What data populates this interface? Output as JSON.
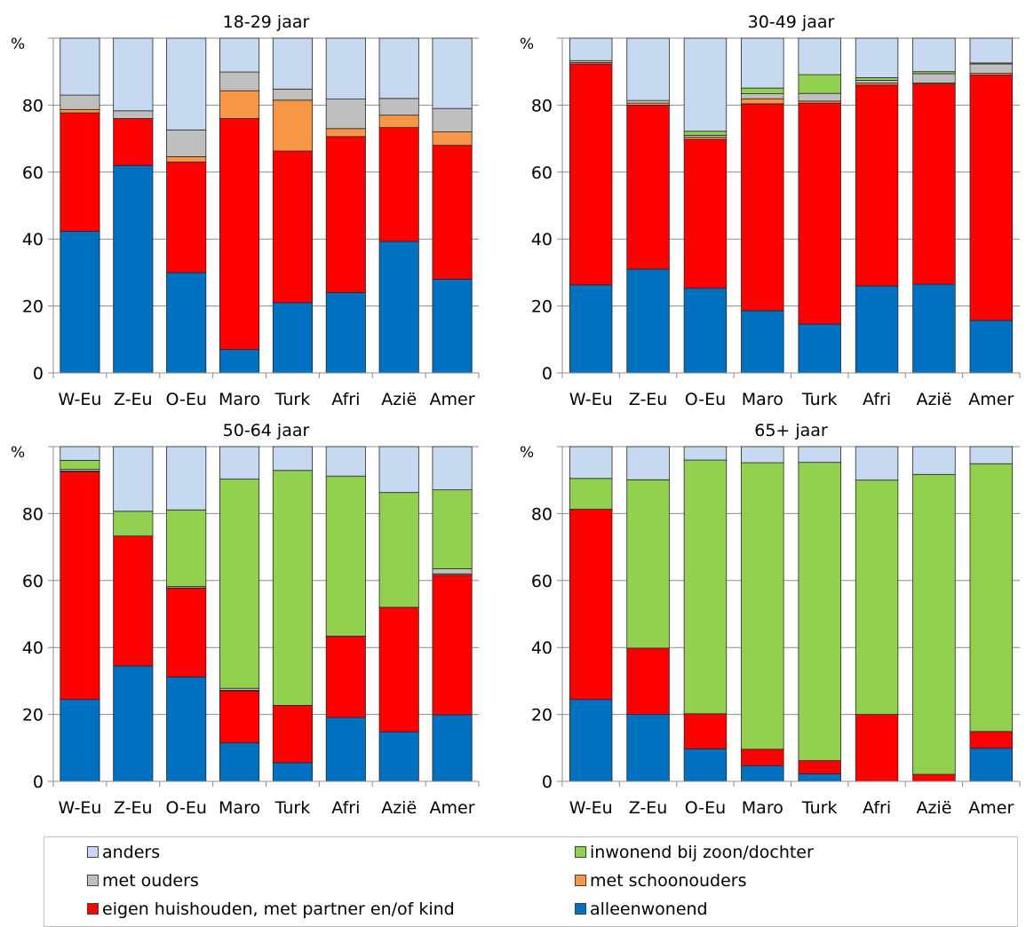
{
  "chart_data": [
    {
      "type": "bar",
      "stacked": true,
      "title": "18-29 jaar",
      "ylabel": "%",
      "ylim": [
        0,
        100
      ],
      "yticks": [
        "0",
        "20",
        "40",
        "60",
        "80"
      ],
      "categories": [
        "W-Eu",
        "Z-Eu",
        "O-Eu",
        "Maro",
        "Turk",
        "Afri",
        "Azië",
        "Amer"
      ],
      "series": [
        {
          "name": "alleenwonend",
          "color": "#0070c0",
          "values": [
            42.3,
            62,
            30,
            7,
            21,
            24,
            39.3,
            28
          ]
        },
        {
          "name": "eigen huishouden, met partner en/of kind",
          "color": "#ff0000",
          "values": [
            35.4,
            14,
            33,
            69,
            45.3,
            46.6,
            34,
            40
          ]
        },
        {
          "name": "met schoonouders",
          "color": "#f79646",
          "values": [
            1,
            0,
            1.6,
            8.3,
            15.2,
            2.4,
            3.7,
            4
          ]
        },
        {
          "name": "met ouders",
          "color": "#bfbfbf",
          "values": [
            4.3,
            2.3,
            8,
            5.6,
            3.3,
            8.8,
            5,
            7
          ]
        },
        {
          "name": "inwonend bij zoon/dochter",
          "color": "#92d050",
          "values": [
            0,
            0,
            0,
            0,
            0,
            0,
            0,
            0
          ]
        },
        {
          "name": "anders",
          "color": "#c6d9f1",
          "values": [
            17,
            21.7,
            27.4,
            10.1,
            15.2,
            18.2,
            18,
            21
          ]
        }
      ]
    },
    {
      "type": "bar",
      "stacked": true,
      "title": "30-49 jaar",
      "ylabel": "%",
      "ylim": [
        0,
        100
      ],
      "yticks": [
        "0",
        "20",
        "40",
        "60",
        "80"
      ],
      "categories": [
        "W-Eu",
        "Z-Eu",
        "O-Eu",
        "Maro",
        "Turk",
        "Afri",
        "Azië",
        "Amer"
      ],
      "series": [
        {
          "name": "alleenwonend",
          "color": "#0070c0",
          "values": [
            26.3,
            31,
            25.3,
            18.6,
            14.6,
            26,
            26.5,
            15.7
          ]
        },
        {
          "name": "eigen huishouden, met partner en/of kind",
          "color": "#ff0000",
          "values": [
            66,
            49,
            44.5,
            61.8,
            66,
            60,
            59.8,
            73.3
          ]
        },
        {
          "name": "met schoonouders",
          "color": "#f79646",
          "values": [
            0.4,
            0.6,
            0.6,
            1.5,
            0.6,
            0.6,
            0.3,
            0.5
          ]
        },
        {
          "name": "met ouders",
          "color": "#bfbfbf",
          "values": [
            0.6,
            0.8,
            0.6,
            1.5,
            2.3,
            0.8,
            2.8,
            2.8
          ]
        },
        {
          "name": "inwonend bij zoon/dochter",
          "color": "#92d050",
          "values": [
            0,
            0,
            1.2,
            1.7,
            5.6,
            0.8,
            0.6,
            0.3
          ]
        },
        {
          "name": "anders",
          "color": "#c6d9f1",
          "values": [
            6.7,
            18.6,
            27.8,
            14.9,
            10.9,
            11.8,
            10,
            7.4
          ]
        }
      ]
    },
    {
      "type": "bar",
      "stacked": true,
      "title": "50-64 jaar",
      "ylabel": "%",
      "ylim": [
        0,
        100
      ],
      "yticks": [
        "0",
        "20",
        "40",
        "60",
        "80"
      ],
      "categories": [
        "W-Eu",
        "Z-Eu",
        "O-Eu",
        "Maro",
        "Turk",
        "Afri",
        "Azië",
        "Amer"
      ],
      "series": [
        {
          "name": "alleenwonend",
          "color": "#0070c0",
          "values": [
            24.5,
            34.5,
            31.2,
            11.5,
            5.6,
            19.1,
            14.8,
            19.9
          ]
        },
        {
          "name": "eigen huishouden, met partner en/of kind",
          "color": "#ff0000",
          "values": [
            68,
            38.8,
            26.5,
            15.5,
            17.1,
            24.3,
            37.2,
            41.7
          ]
        },
        {
          "name": "met schoonouders",
          "color": "#f79646",
          "values": [
            0.2,
            0,
            0.1,
            0.2,
            0,
            0,
            0,
            0.4
          ]
        },
        {
          "name": "met ouders",
          "color": "#bfbfbf",
          "values": [
            0.5,
            0,
            0.4,
            0.6,
            0,
            0,
            0,
            1.5
          ]
        },
        {
          "name": "inwonend bij zoon/dochter",
          "color": "#92d050",
          "values": [
            2.7,
            7.4,
            22.9,
            62.5,
            70.2,
            47.8,
            34.3,
            23.6
          ]
        },
        {
          "name": "anders",
          "color": "#c6d9f1",
          "values": [
            4.1,
            19.3,
            18.9,
            9.7,
            7.1,
            8.8,
            13.7,
            12.9
          ]
        }
      ]
    },
    {
      "type": "bar",
      "stacked": true,
      "title": "65+ jaar",
      "ylabel": "%",
      "ylim": [
        0,
        100
      ],
      "yticks": [
        "0",
        "20",
        "40",
        "60",
        "80"
      ],
      "categories": [
        "W-Eu",
        "Z-Eu",
        "O-Eu",
        "Maro",
        "Turk",
        "Afri",
        "Azië",
        "Amer"
      ],
      "series": [
        {
          "name": "alleenwonend",
          "color": "#0070c0",
          "values": [
            24.5,
            20,
            9.7,
            4.7,
            2.3,
            0,
            0,
            9.9
          ]
        },
        {
          "name": "eigen huishouden, met partner en/of kind",
          "color": "#ff0000",
          "values": [
            56.8,
            19.8,
            10.5,
            4.9,
            3.9,
            20,
            2.1,
            5
          ]
        },
        {
          "name": "met schoonouders",
          "color": "#f79646",
          "values": [
            0,
            0,
            0,
            0,
            0,
            0,
            0,
            0
          ]
        },
        {
          "name": "met ouders",
          "color": "#bfbfbf",
          "values": [
            0,
            0,
            0,
            0,
            0,
            0,
            0,
            0
          ]
        },
        {
          "name": "inwonend bij zoon/dochter",
          "color": "#92d050",
          "values": [
            9.2,
            50.3,
            75.8,
            85.6,
            89.1,
            70,
            89.6,
            80
          ]
        },
        {
          "name": "anders",
          "color": "#c6d9f1",
          "values": [
            9.5,
            9.9,
            4,
            4.8,
            4.7,
            10,
            8.3,
            5.1
          ]
        }
      ]
    }
  ],
  "legend": {
    "items": [
      {
        "label": "anders",
        "color": "#c6d9f1"
      },
      {
        "label": "inwonend bij zoon/dochter",
        "color": "#92d050"
      },
      {
        "label": "met ouders",
        "color": "#bfbfbf"
      },
      {
        "label": "met schoonouders",
        "color": "#f79646"
      },
      {
        "label": "eigen huishouden, met partner en/of kind",
        "color": "#ff0000"
      },
      {
        "label": "alleenwonend",
        "color": "#0070c0"
      }
    ]
  }
}
